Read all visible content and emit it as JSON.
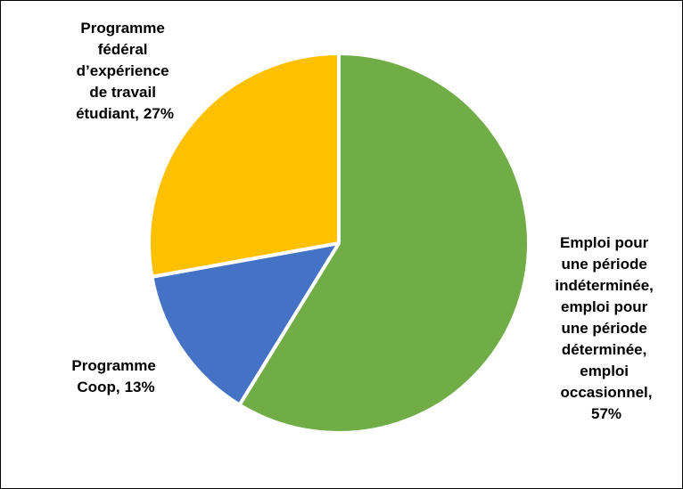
{
  "chart_data": {
    "type": "pie",
    "categories": [
      "Emploi pour une période indéterminée, emploi pour une période déterminée, emploi occasionnel,",
      "Programme Coop,",
      "Programme fédéral d’expérience de travail étudiant,"
    ],
    "values": [
      57,
      13,
      27
    ],
    "value_labels": [
      "57%",
      "13%",
      "27%"
    ],
    "colors": [
      "#70ad47",
      "#4472c4",
      "#ffc000"
    ]
  }
}
